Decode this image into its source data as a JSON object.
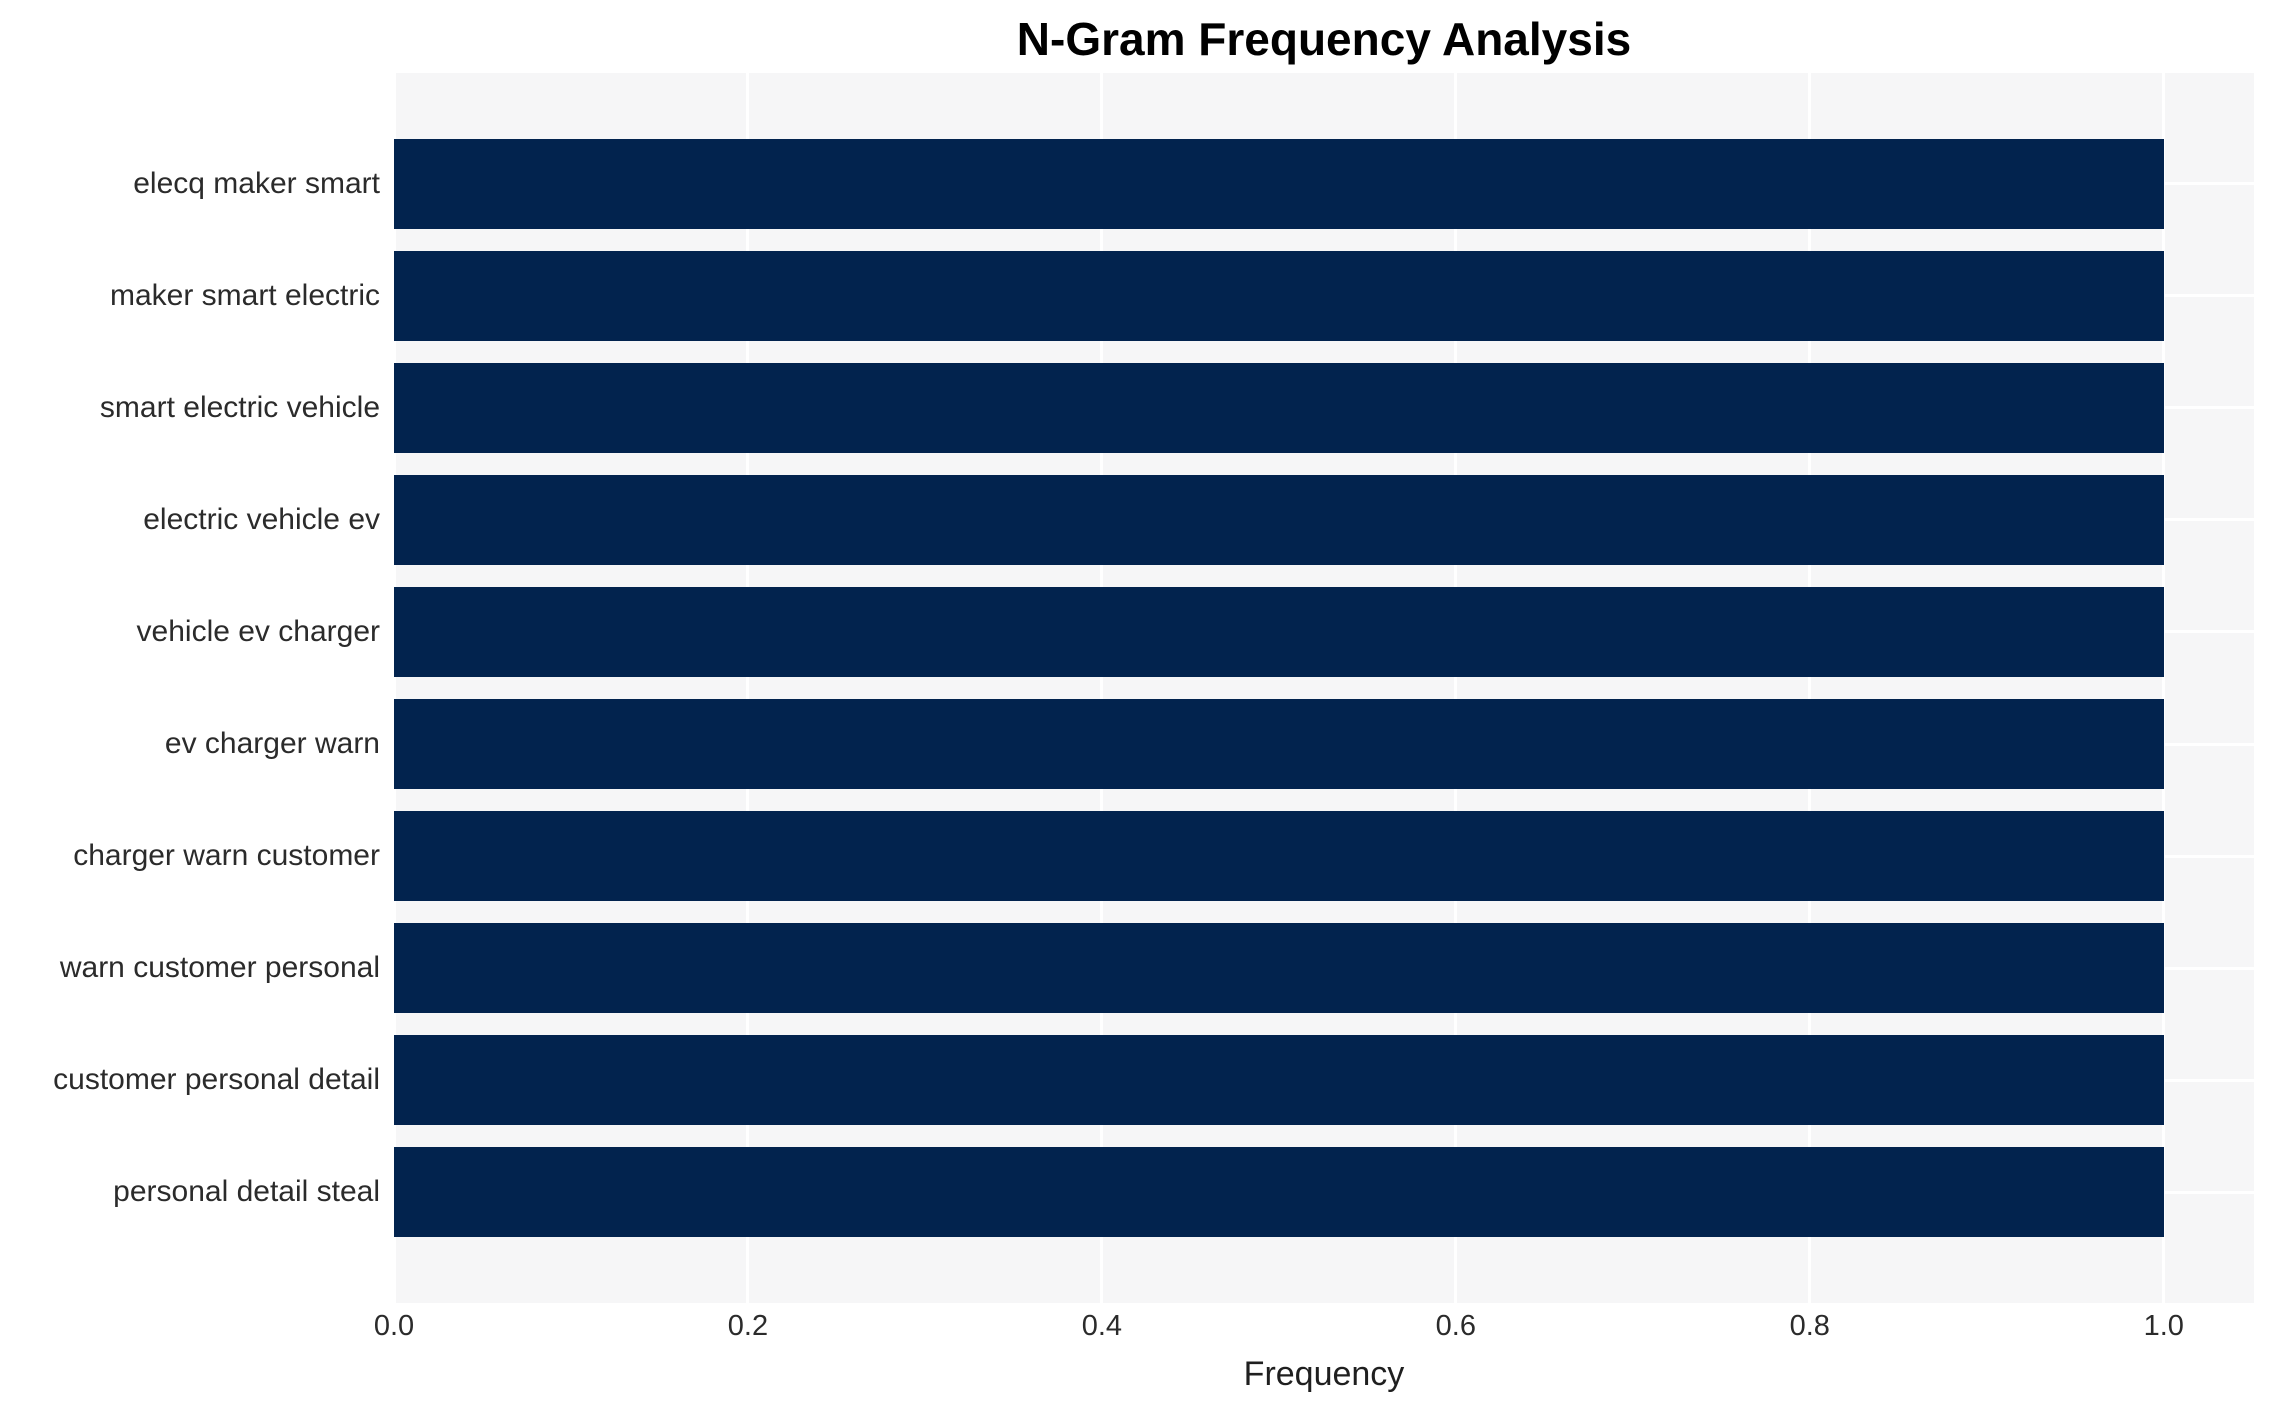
{
  "chart_data": {
    "type": "bar",
    "orientation": "horizontal",
    "title": "N-Gram Frequency Analysis",
    "xlabel": "Frequency",
    "ylabel": "",
    "categories": [
      "elecq maker smart",
      "maker smart electric",
      "smart electric vehicle",
      "electric vehicle ev",
      "vehicle ev charger",
      "ev charger warn",
      "charger warn customer",
      "warn customer personal",
      "customer personal detail",
      "personal detail steal"
    ],
    "values": [
      1.0,
      1.0,
      1.0,
      1.0,
      1.0,
      1.0,
      1.0,
      1.0,
      1.0,
      1.0
    ],
    "xticks": [
      "0.0",
      "0.2",
      "0.4",
      "0.6",
      "0.8",
      "1.0"
    ],
    "xtick_values": [
      0.0,
      0.2,
      0.4,
      0.6,
      0.8,
      1.0
    ],
    "xlim": [
      0.0,
      1.051
    ],
    "bar_height_fraction": 0.8,
    "grid": "on",
    "legend": "none",
    "colors": {
      "bar": "#02234e",
      "plot_background": "#f6f6f7",
      "figure_background": "#ffffff",
      "grid_line": "#ffffff",
      "title_text": "#000000",
      "tick_text": "#2b2b2b"
    }
  }
}
